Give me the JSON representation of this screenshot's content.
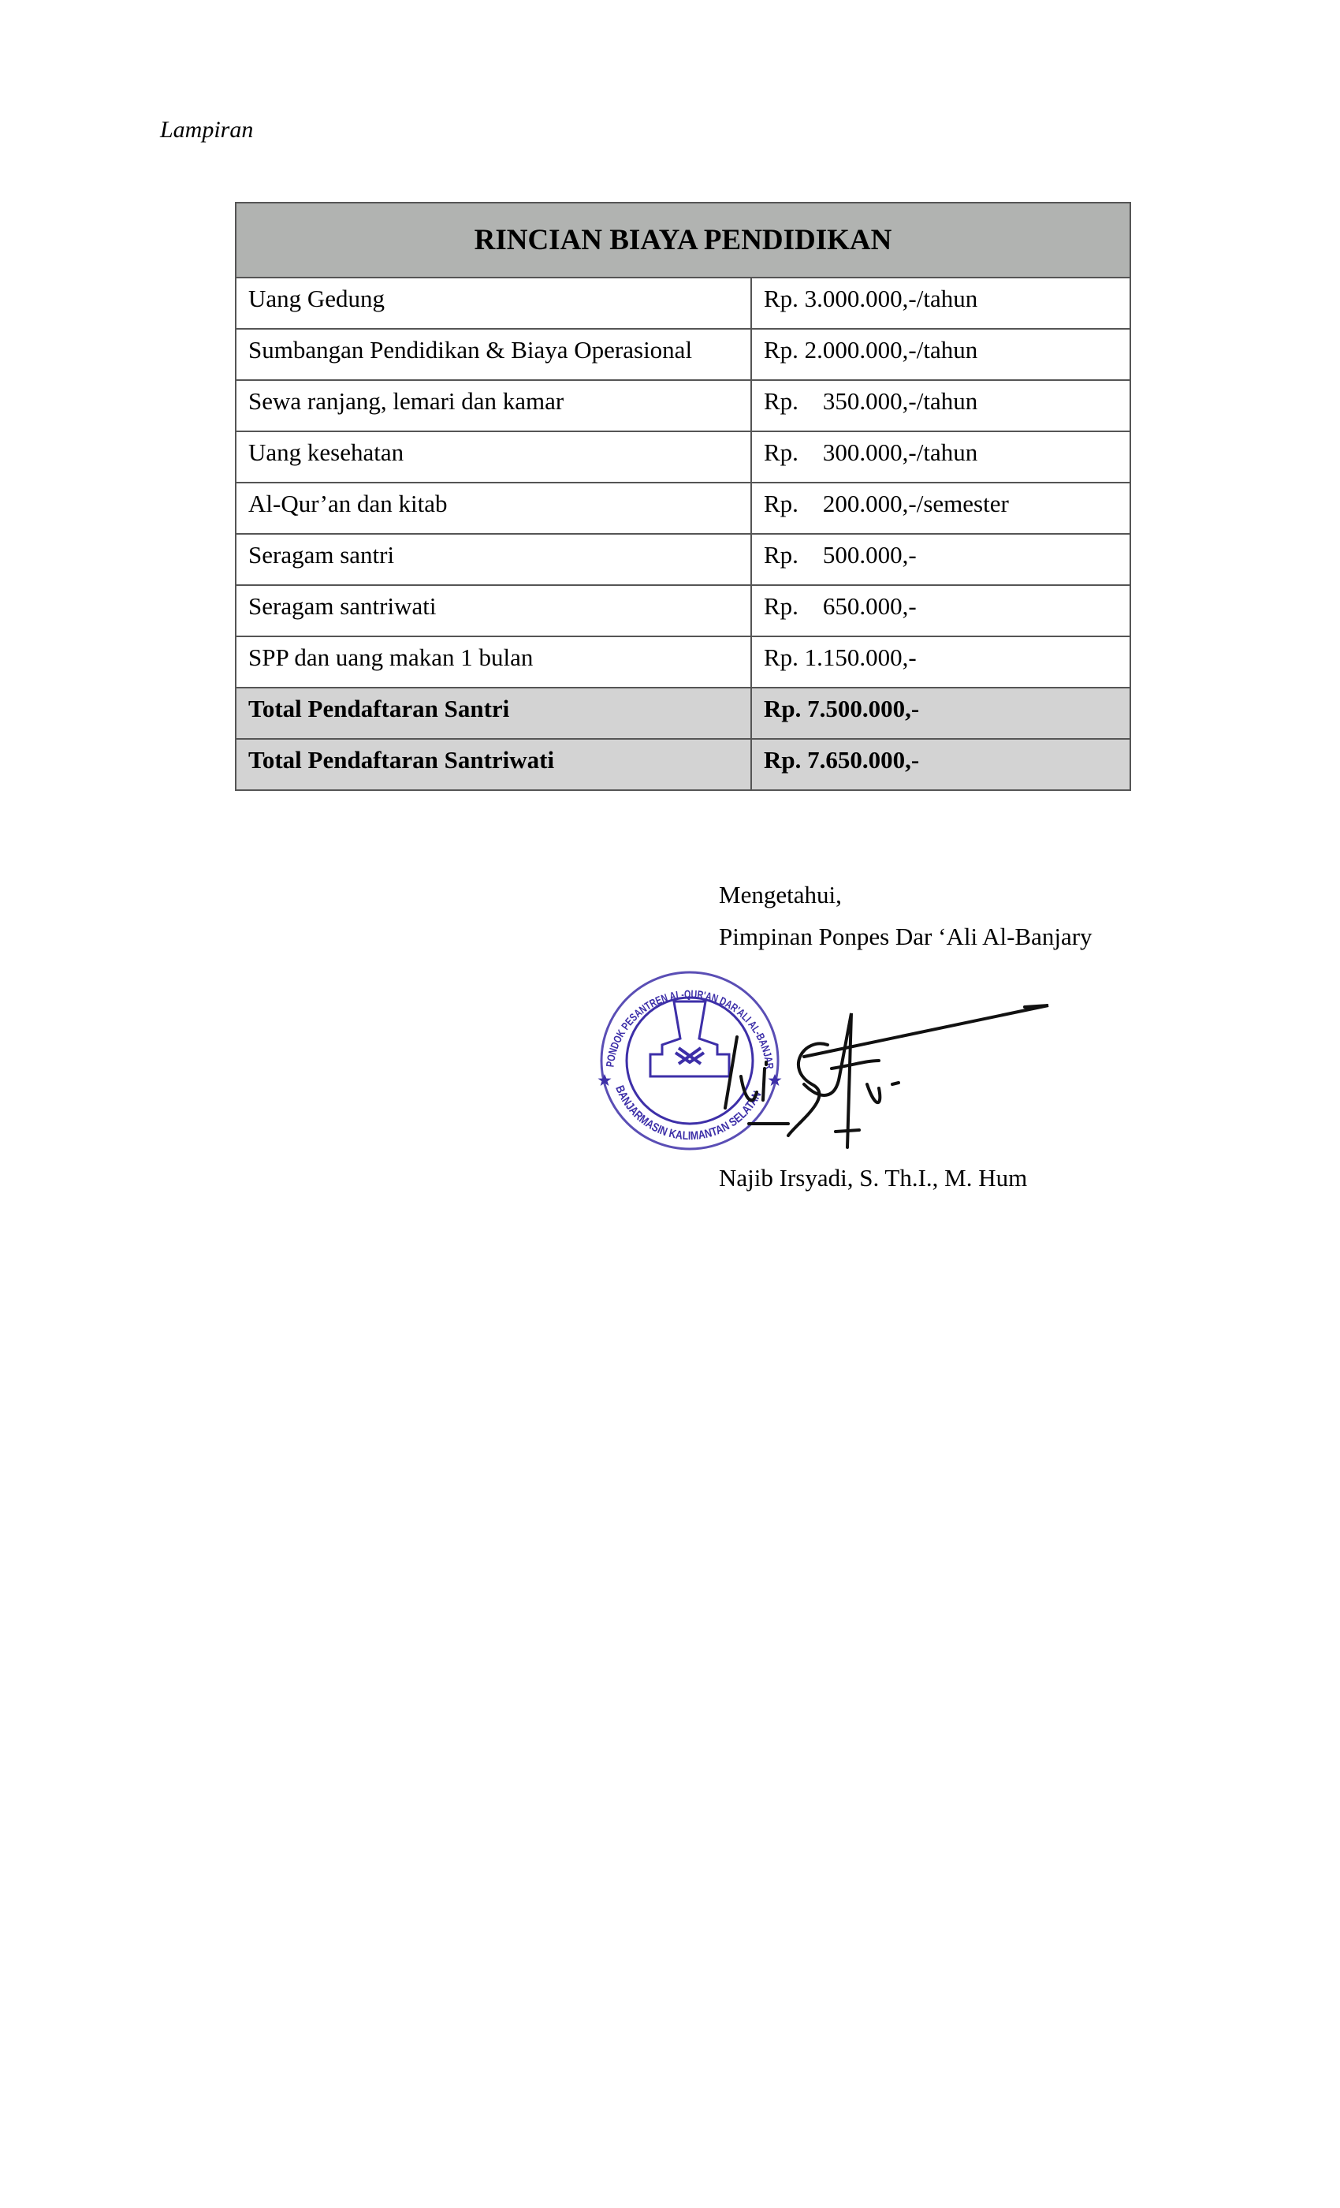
{
  "header": {
    "label": "Lampiran"
  },
  "table": {
    "title": "RINCIAN BIAYA PENDIDIKAN",
    "rows": [
      {
        "item": "Uang Gedung",
        "amount": "Rp. 3.000.000,-/tahun"
      },
      {
        "item": "Sumbangan Pendidikan & Biaya Operasional",
        "amount": "Rp. 2.000.000,-/tahun"
      },
      {
        "item": "Sewa ranjang, lemari dan kamar",
        "amount": "Rp.    350.000,-/tahun"
      },
      {
        "item": "Uang kesehatan",
        "amount": "Rp.    300.000,-/tahun"
      },
      {
        "item": "Al-Qur’an dan kitab",
        "amount": "Rp.    200.000,-/semester"
      },
      {
        "item": "Seragam santri",
        "amount": "Rp.    500.000,-"
      },
      {
        "item": "Seragam santriwati",
        "amount": "Rp.    650.000,-"
      },
      {
        "item": "SPP dan uang makan 1 bulan",
        "amount": "Rp. 1.150.000,-"
      }
    ],
    "totals": [
      {
        "item": "Total Pendaftaran Santri",
        "amount": "Rp. 7.500.000,-"
      },
      {
        "item": "Total Pendaftaran Santriwati",
        "amount": "Rp. 7.650.000,-"
      }
    ],
    "header_color": "#b1b3b1",
    "total_color": "#d3d3d3"
  },
  "signature": {
    "acknowledged": "Mengetahui,",
    "position": "Pimpinan Ponpes Dar ‘Ali Al-Banjary",
    "name": "Najib Irsyadi, S. Th.I., M. Hum",
    "stamp_text_top": "PONDOK PESANTREN AL-QUR'AN DAR'ALI AL-BANJARY",
    "stamp_text_bottom": "BANJARMASIN KALIMANTAN SELATAN",
    "stamp_color": "#3d2fa8"
  }
}
